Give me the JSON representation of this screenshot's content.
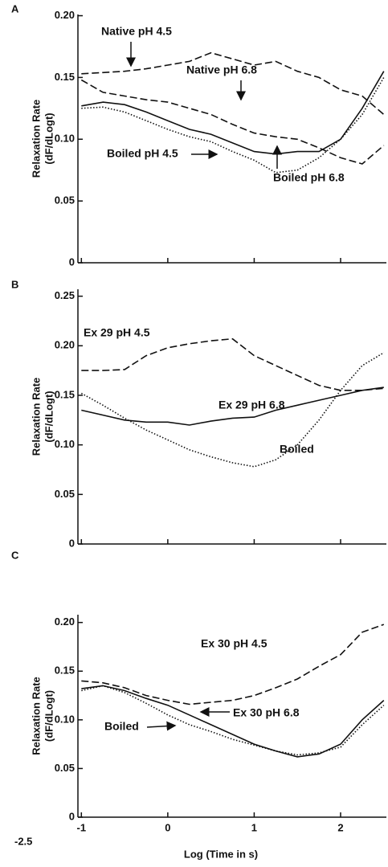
{
  "chart_data": [
    {
      "type": "line",
      "panel": "A",
      "ylabel": "Relaxation Rate",
      "ylabel2": "(dF/dLogt)",
      "xlim": [
        -1.04,
        2.53
      ],
      "ylim": [
        0,
        0.201
      ],
      "xticks": [
        -1,
        0,
        1,
        2
      ],
      "yticks": [
        0,
        0.05,
        {
          "value": 0.1,
          "label": "0.10"
        },
        0.15,
        {
          "value": 0.2,
          "label": "0.20"
        }
      ],
      "x": [
        -1,
        -0.75,
        -0.5,
        -0.25,
        0,
        0.25,
        0.5,
        0.75,
        1,
        1.25,
        1.5,
        1.75,
        2,
        2.25,
        2.5
      ],
      "series": [
        {
          "name": "Native pH 4.5",
          "color": "#111",
          "dash": "dashed",
          "values": [
            0.153,
            0.154,
            0.155,
            0.157,
            0.16,
            0.163,
            0.17,
            0.165,
            0.16,
            0.163,
            0.155,
            0.15,
            0.14,
            0.135,
            0.12
          ]
        },
        {
          "name": "Native pH 6.8",
          "color": "#111",
          "dash": "dashed",
          "values": [
            0.148,
            0.138,
            0.135,
            0.132,
            0.13,
            0.125,
            0.12,
            0.112,
            0.105,
            0.102,
            0.1,
            0.093,
            0.085,
            0.08,
            0.095
          ]
        },
        {
          "name": "Boiled pH 4.5",
          "color": "#111",
          "dash": "solid",
          "values": [
            0.127,
            0.13,
            0.128,
            0.122,
            0.115,
            0.108,
            0.104,
            0.097,
            0.09,
            0.088,
            0.09,
            0.09,
            0.1,
            0.125,
            0.155
          ]
        },
        {
          "name": "Boiled pH 6.8",
          "color": "#111",
          "dash": "dotted",
          "values": [
            0.125,
            0.126,
            0.122,
            0.115,
            0.108,
            0.102,
            0.098,
            0.09,
            0.083,
            0.073,
            0.075,
            0.085,
            0.1,
            0.12,
            0.15
          ]
        }
      ],
      "annotations": [
        "Native pH 4.5",
        "Native pH 6.8",
        "Boiled pH 4.5",
        "Boiled pH 6.8"
      ]
    },
    {
      "type": "line",
      "panel": "B",
      "ylabel": "Relaxation Rate",
      "ylabel2": "(dF/dLogt)",
      "xlim": [
        -1.04,
        2.53
      ],
      "ylim": [
        0,
        0.257
      ],
      "xticks": [
        -1,
        0,
        1,
        2
      ],
      "yticks": [
        0,
        0.05,
        {
          "value": 0.1,
          "label": "0.10"
        },
        0.15,
        {
          "value": 0.2,
          "label": "0.20"
        },
        0.25
      ],
      "x": [
        -1,
        -0.75,
        -0.5,
        -0.25,
        0,
        0.25,
        0.5,
        0.75,
        1,
        1.25,
        1.5,
        1.75,
        2,
        2.25,
        2.5
      ],
      "series": [
        {
          "name": "Ex 29 pH 4.5",
          "color": "#111",
          "dash": "dashed",
          "values": [
            0.175,
            0.175,
            0.176,
            0.19,
            0.198,
            0.202,
            0.205,
            0.207,
            0.19,
            0.18,
            0.17,
            0.16,
            0.155,
            0.155,
            0.157
          ]
        },
        {
          "name": "Ex 29 pH 6.8",
          "color": "#111",
          "dash": "solid",
          "values": [
            0.135,
            0.13,
            0.125,
            0.123,
            0.123,
            0.12,
            0.124,
            0.127,
            0.128,
            0.135,
            0.14,
            0.145,
            0.15,
            0.155,
            0.158
          ]
        },
        {
          "name": "Boiled",
          "color": "#111",
          "dash": "dotted",
          "values": [
            0.152,
            0.14,
            0.127,
            0.115,
            0.105,
            0.095,
            0.088,
            0.082,
            0.078,
            0.085,
            0.1,
            0.125,
            0.155,
            0.18,
            0.193
          ]
        }
      ],
      "annotations": [
        "Ex 29 pH 4.5",
        "Ex 29 pH 6.8",
        "Boiled"
      ]
    },
    {
      "type": "line",
      "panel": "C",
      "ylabel": "Relaxation Rate",
      "ylabel2": "(dF/dLogt)",
      "xlabel": "Log (Time in s)",
      "note": "-2.5",
      "xlim": [
        -1.04,
        2.53
      ],
      "ylim": [
        0,
        0.208
      ],
      "xticks": [
        -1,
        0,
        1,
        2
      ],
      "yticks": [
        0,
        0.05,
        {
          "value": 0.1,
          "label": "0.10"
        },
        0.15,
        {
          "value": 0.2,
          "label": "0.20"
        }
      ],
      "x": [
        -1,
        -0.75,
        -0.5,
        -0.25,
        0,
        0.25,
        0.5,
        0.75,
        1,
        1.25,
        1.5,
        1.75,
        2,
        2.25,
        2.5
      ],
      "series": [
        {
          "name": "Ex 30 pH 4.5",
          "color": "#111",
          "dash": "dashed",
          "values": [
            0.14,
            0.138,
            0.133,
            0.125,
            0.12,
            0.116,
            0.118,
            0.12,
            0.125,
            0.133,
            0.142,
            0.155,
            0.167,
            0.19,
            0.198
          ]
        },
        {
          "name": "Ex 30 pH 6.8",
          "color": "#111",
          "dash": "solid",
          "values": [
            0.132,
            0.135,
            0.13,
            0.122,
            0.115,
            0.105,
            0.095,
            0.085,
            0.075,
            0.068,
            0.062,
            0.065,
            0.075,
            0.1,
            0.12
          ]
        },
        {
          "name": "Boiled",
          "color": "#111",
          "dash": "dotted",
          "values": [
            0.13,
            0.135,
            0.128,
            0.117,
            0.105,
            0.095,
            0.088,
            0.08,
            0.074,
            0.068,
            0.064,
            0.066,
            0.072,
            0.095,
            0.115
          ]
        }
      ],
      "annotations": [
        "Ex 30 pH 4.5",
        "Ex 30 pH 6.8",
        "Boiled"
      ]
    }
  ]
}
